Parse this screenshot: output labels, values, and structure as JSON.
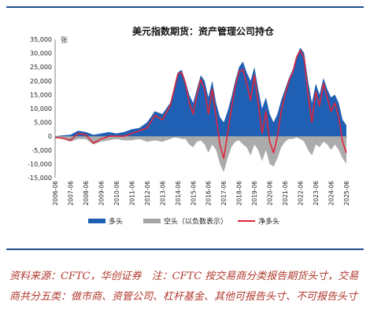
{
  "chart_data": {
    "type": "area",
    "title": "美元指数期货：资产管理公司持仓",
    "unit_label": "张",
    "ylim": [
      -15000,
      35000
    ],
    "y_ticks": [
      "35,000",
      "30,000",
      "25,000",
      "20,000",
      "15,000",
      "10,000",
      "5,000",
      "0",
      "-5,000",
      "-10,000",
      "-15,000"
    ],
    "x_ticks": [
      "2006-06",
      "2007-06",
      "2008-06",
      "2009-06",
      "2010-06",
      "2011-06",
      "2012-06",
      "2013-06",
      "2014-06",
      "2015-06",
      "2016-06",
      "2017-06",
      "2018-06",
      "2019-06",
      "2020-06",
      "2021-06",
      "2022-06",
      "2023-06",
      "2024-06",
      "2025-06"
    ],
    "legend": [
      {
        "label": "多头",
        "color": "#1f5fb4",
        "kind": "area"
      },
      {
        "label": "空头（以负数表示）",
        "color": "#a6a6a6",
        "kind": "area"
      },
      {
        "label": "净多头",
        "color": "#e0263a",
        "kind": "line"
      }
    ],
    "x": [
      2006.5,
      2007.0,
      2007.5,
      2008.0,
      2008.5,
      2009.0,
      2009.5,
      2010.0,
      2010.5,
      2011.0,
      2011.5,
      2012.0,
      2012.5,
      2013.0,
      2013.5,
      2014.0,
      2014.25,
      2014.5,
      2014.75,
      2015.0,
      2015.25,
      2015.5,
      2015.75,
      2016.0,
      2016.25,
      2016.5,
      2016.75,
      2017.0,
      2017.25,
      2017.5,
      2017.75,
      2018.0,
      2018.25,
      2018.5,
      2018.75,
      2019.0,
      2019.25,
      2019.5,
      2019.75,
      2020.0,
      2020.25,
      2020.5,
      2020.75,
      2021.0,
      2021.25,
      2021.5,
      2021.75,
      2022.0,
      2022.25,
      2022.5,
      2022.75,
      2023.0,
      2023.25,
      2023.5,
      2023.75,
      2024.0,
      2024.25,
      2024.5,
      2024.75,
      2025.0,
      2025.25,
      2025.5
    ],
    "series": [
      {
        "name": "多头",
        "values": [
          0,
          300,
          500,
          2000,
          1500,
          500,
          1000,
          1500,
          1000,
          1500,
          2500,
          3000,
          5000,
          9000,
          8000,
          12000,
          17000,
          23000,
          24000,
          20000,
          15000,
          12000,
          17000,
          22000,
          20000,
          14000,
          20000,
          12000,
          7000,
          5000,
          9000,
          14000,
          20000,
          25000,
          27000,
          23000,
          20000,
          25000,
          17000,
          10000,
          14000,
          8000,
          5000,
          8000,
          13000,
          17000,
          21000,
          24000,
          29000,
          32000,
          30000,
          20000,
          12000,
          19000,
          15000,
          21000,
          17000,
          14000,
          15000,
          12000,
          6000,
          4000
        ]
      },
      {
        "name": "空头（以负数表示）",
        "values": [
          -500,
          -1000,
          -2000,
          -1000,
          -1000,
          -3000,
          -2000,
          -1500,
          -1000,
          -1500,
          -1500,
          -1000,
          -2000,
          -1500,
          -2000,
          -1000,
          -500,
          -500,
          -1000,
          -1000,
          -3000,
          -4000,
          -2000,
          -1500,
          -3000,
          -6000,
          -3000,
          -5000,
          -10000,
          -13000,
          -8000,
          -4000,
          -2000,
          -1500,
          -3000,
          -4000,
          -7000,
          -3000,
          -5000,
          -9000,
          -5000,
          -10000,
          -11000,
          -8000,
          -4000,
          -2000,
          -1000,
          -1000,
          -500,
          -1000,
          -2000,
          -5000,
          -7000,
          -3000,
          -4000,
          -2000,
          -3000,
          -5000,
          -3000,
          -5000,
          -8000,
          -10000
        ]
      },
      {
        "name": "净多头",
        "values": [
          -500,
          -700,
          -1500,
          1000,
          500,
          -2500,
          -1000,
          0,
          0,
          0,
          1000,
          2000,
          3000,
          7500,
          6000,
          11000,
          16500,
          22500,
          23000,
          19000,
          12000,
          8000,
          15000,
          20500,
          17000,
          8000,
          17000,
          7000,
          -3000,
          -8000,
          1000,
          10000,
          18000,
          23500,
          24000,
          19000,
          13000,
          22000,
          12000,
          1000,
          9000,
          -2000,
          -6000,
          0,
          9000,
          15000,
          20000,
          23000,
          28500,
          31000,
          28000,
          15000,
          5000,
          16000,
          11000,
          19000,
          14000,
          9000,
          12000,
          7000,
          -2000,
          -6000
        ]
      }
    ]
  },
  "source_note": "资料来源：CFTC，华创证券　注：CFTC 按交易商分类报告期货头寸，交易商共分五类：做市商、资管公司、杠杆基金、其他可报告头寸、不可报告头寸"
}
